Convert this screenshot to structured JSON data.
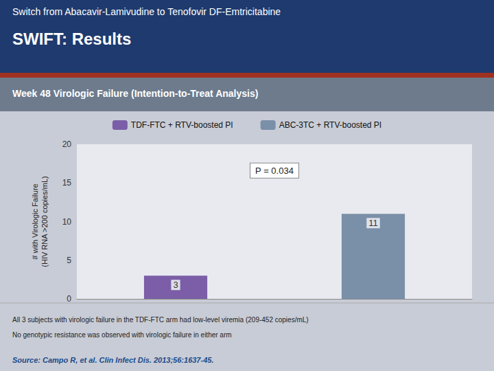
{
  "chart_data": {
    "type": "bar",
    "supertitle": "Switch from Abacavir-Lamivudine to Tenofovir DF-Emtricitabine",
    "title": "SWIFT: Results",
    "subtitle": "Week 48 Virologic Failure (Intention-to-Treat Analysis)",
    "categories": [
      null,
      null
    ],
    "series": [
      {
        "name": "TDF-FTC + RTV-boosted PI",
        "color": "#7b5ea7",
        "values": [
          3,
          null
        ]
      },
      {
        "name": "ABC-3TC + RTV-boosted PI",
        "color": "#7a8fa8",
        "values": [
          null,
          11
        ]
      }
    ],
    "ylabel": "# with Virologic Failure\n(HIV RNA >200 copies/mL)",
    "ylim": [
      0,
      20
    ],
    "yticks": [
      0,
      5,
      10,
      15,
      20
    ],
    "grid": false,
    "legend": "top",
    "data_labels": true,
    "tick_labels": "y",
    "p_value": "P = 0.034",
    "annotations": [
      "All 3 subjects with virologic failure in the TDF-FTC arm had low-level viremia (209-452 copies/mL)",
      "No genotypic resistance was observed with virologic failure in either arm"
    ],
    "source": "Source: Campo R, et al. Clin Infect Dis. 2013;56:1637-45."
  }
}
